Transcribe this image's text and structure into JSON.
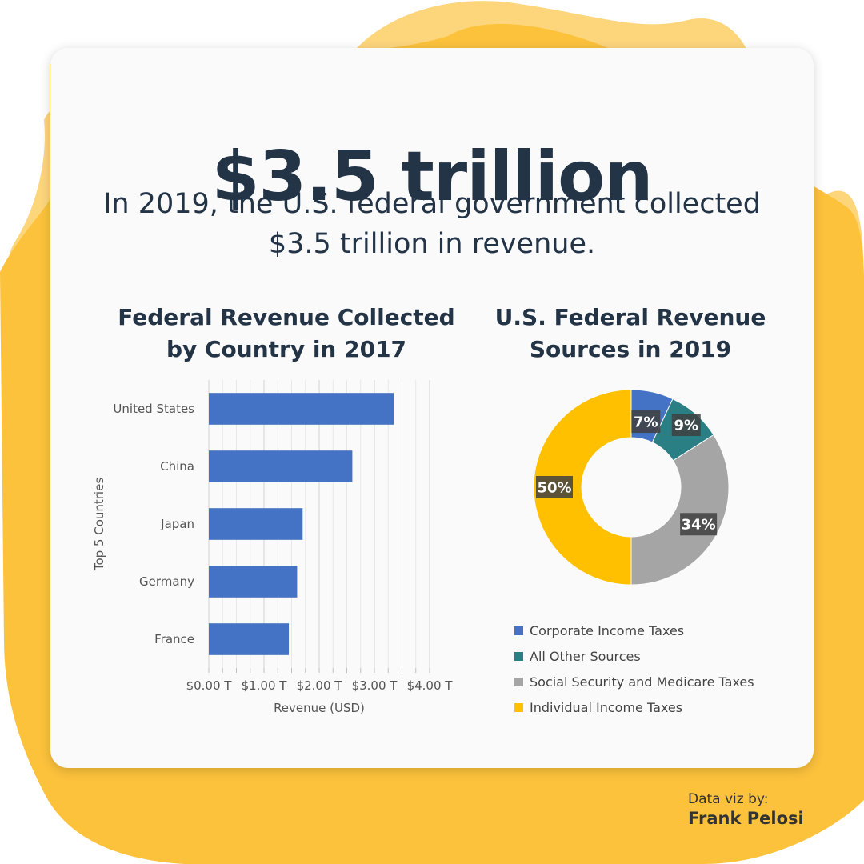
{
  "headline": "$3.5 trillion",
  "subheadline": "In 2019, the U.S. federal government collected $3.5 trillion in revenue.",
  "credit": {
    "label": "Data viz by:",
    "name": "Frank Pelosi"
  },
  "colors": {
    "blob_main": "#fcc23c",
    "blob_light": "#fdd67c",
    "title_text": "#243447"
  },
  "chart_data": [
    {
      "type": "bar",
      "orientation": "horizontal",
      "title": "Federal Revenue Collected by Country in 2017",
      "categories": [
        "United States",
        "China",
        "Japan",
        "Germany",
        "France"
      ],
      "values": [
        3.35,
        2.6,
        1.7,
        1.6,
        1.45
      ],
      "xlabel": "Revenue (USD)",
      "ylabel": "Top 5 Countries",
      "xlim": [
        0,
        4
      ],
      "xticks": [
        "$0.00 T",
        "$1.00 T",
        "$2.00 T",
        "$3.00 T",
        "$4.00 T"
      ],
      "grid": true,
      "color": "#4472c4"
    },
    {
      "type": "pie",
      "donut": true,
      "title": "U.S. Federal Revenue Sources in 2019",
      "labels": [
        "Corporate Income Taxes",
        "All Other Sources",
        "Social Security and Medicare Taxes",
        "Individual Income Taxes"
      ],
      "values": [
        7,
        9,
        34,
        50
      ],
      "value_labels": [
        "7%",
        "9%",
        "34%",
        "50%"
      ],
      "colors": [
        "#4472c4",
        "#2a7f85",
        "#a5a5a5",
        "#ffc000"
      ],
      "legend": "bottom"
    }
  ]
}
